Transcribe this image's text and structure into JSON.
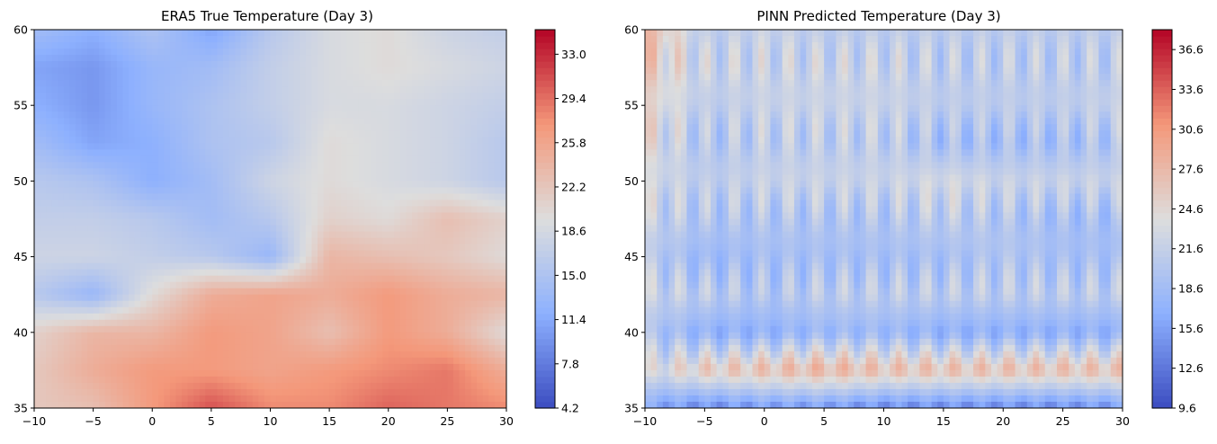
{
  "chart_data": [
    {
      "type": "heatmap",
      "title": "ERA5 True Temperature (Day 3)",
      "xlim": [
        -10,
        30
      ],
      "ylim": [
        35,
        60
      ],
      "x_ticks": [
        -10,
        -5,
        0,
        5,
        10,
        15,
        20,
        25,
        30
      ],
      "y_ticks": [
        35,
        40,
        45,
        50,
        55,
        60
      ],
      "colormap": "coolwarm",
      "colorbar": {
        "min": 4.2,
        "max": 35.0,
        "ticks": [
          4.2,
          7.8,
          11.4,
          15.0,
          18.6,
          22.2,
          25.8,
          29.4,
          33.0
        ]
      },
      "field": {
        "x": [
          -10,
          -5,
          0,
          5,
          10,
          15,
          20,
          25,
          30
        ],
        "y": [
          60,
          57.5,
          55,
          52.5,
          50,
          47.5,
          45,
          42.5,
          40,
          37.5,
          35
        ],
        "values": [
          [
            14,
            12,
            15,
            11,
            16,
            19,
            20,
            18,
            17
          ],
          [
            11,
            10,
            13,
            14,
            17,
            19,
            20,
            19,
            18
          ],
          [
            12,
            10,
            13,
            15,
            17,
            19,
            19,
            18,
            17
          ],
          [
            14,
            11,
            12,
            15,
            16,
            20,
            19,
            18,
            16
          ],
          [
            16,
            15,
            12,
            14,
            18,
            20,
            19,
            18,
            16
          ],
          [
            17,
            17,
            16,
            14,
            16,
            21,
            20,
            23,
            21
          ],
          [
            18,
            18,
            17,
            16,
            13,
            24,
            23,
            22,
            20
          ],
          [
            16,
            13,
            20,
            25,
            26,
            25,
            27,
            25,
            24
          ],
          [
            21,
            24,
            24,
            27,
            26,
            23,
            27,
            25,
            20
          ],
          [
            22,
            25,
            27,
            27,
            26,
            27,
            28,
            29,
            25
          ],
          [
            22,
            23,
            27,
            31,
            28,
            28,
            30,
            29,
            28
          ]
        ]
      }
    },
    {
      "type": "heatmap",
      "title": "PINN Predicted Temperature (Day 3)",
      "xlim": [
        -10,
        30
      ],
      "ylim": [
        35,
        60
      ],
      "x_ticks": [
        -10,
        -5,
        0,
        5,
        10,
        15,
        20,
        25,
        30
      ],
      "y_ticks": [
        35,
        40,
        45,
        50,
        55,
        60
      ],
      "colormap": "coolwarm",
      "colorbar": {
        "min": 9.6,
        "max": 38.1,
        "ticks": [
          9.6,
          12.6,
          15.6,
          18.6,
          21.6,
          24.6,
          27.6,
          30.6,
          33.6,
          36.6
        ]
      },
      "field": {
        "x": [
          -10,
          -5,
          0,
          5,
          10,
          15,
          20,
          25,
          30
        ],
        "y": [
          60,
          57.5,
          55,
          52.5,
          50,
          47.5,
          45,
          42.5,
          40,
          37.5,
          35
        ],
        "values": [
          [
            28,
            21,
            22,
            21,
            21,
            21,
            21,
            21,
            21
          ],
          [
            26,
            22,
            22,
            22,
            22,
            21,
            21,
            21,
            21
          ],
          [
            25,
            21,
            22,
            22,
            22,
            21,
            21,
            21,
            22
          ],
          [
            24,
            20,
            21,
            21,
            21,
            19,
            19,
            19,
            20
          ],
          [
            23,
            21,
            22,
            22,
            22,
            23,
            22,
            22,
            22
          ],
          [
            22,
            20,
            20,
            20,
            20,
            21,
            20,
            19,
            19
          ],
          [
            21,
            18,
            19,
            19,
            19,
            19,
            20,
            19,
            19
          ],
          [
            22,
            21,
            20,
            21,
            21,
            21,
            21,
            21,
            21
          ],
          [
            20,
            17,
            17,
            18,
            18,
            17,
            17,
            17,
            17
          ],
          [
            23,
            26,
            27,
            28,
            27,
            27,
            27,
            27,
            27
          ],
          [
            16,
            14,
            15,
            15,
            14,
            14,
            14,
            14,
            15
          ]
        ]
      },
      "stripe_amplitude": 3.0,
      "stripe_period": 2.3
    }
  ]
}
